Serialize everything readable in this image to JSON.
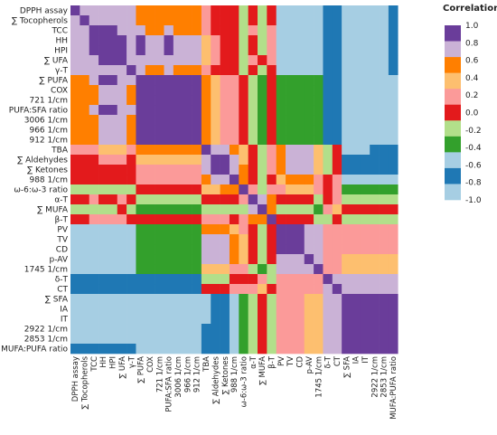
{
  "chart_data": {
    "type": "heatmap",
    "title": "",
    "variables": [
      "DPPH assay",
      "∑ Tocopherols",
      "TCC",
      "HH",
      "HPI",
      "∑ UFA",
      "γ-T",
      "∑ PUFA",
      "COX",
      "721 1/cm",
      "PUFA:SFA ratio",
      "3006 1/cm",
      "966 1/cm",
      "912 1/cm",
      "TBA",
      "∑ Aldehydes",
      "∑ Ketones",
      "988 1/cm",
      "ω-6:ω-3 ratio",
      "α-T",
      "∑ MUFA",
      "β-T",
      "PV",
      "TV",
      "CD",
      "p-AV",
      "1745 1/cm",
      "δ-T",
      "CT",
      "∑ SFA",
      "IA",
      "IT",
      "2922 1/cm",
      "2853 1/cm",
      "MUFA:PUFA ratio"
    ],
    "matrix": [
      [
        1.0,
        0.8,
        0.8,
        0.8,
        0.8,
        0.8,
        0.8,
        0.6,
        0.6,
        0.6,
        0.6,
        0.6,
        0.6,
        0.6,
        0.2,
        0.0,
        0.0,
        0.0,
        -0.2,
        0.0,
        -0.2,
        0.0,
        -0.6,
        -0.6,
        -0.6,
        -0.6,
        -0.6,
        -0.8,
        -0.8,
        -1.0,
        -1.0,
        -1.0,
        -1.0,
        -1.0,
        -0.8
      ],
      [
        0.8,
        1.0,
        0.8,
        0.8,
        0.8,
        0.8,
        0.8,
        0.6,
        0.6,
        0.6,
        0.6,
        0.6,
        0.6,
        0.6,
        0.2,
        0.0,
        0.0,
        0.0,
        -0.2,
        0.0,
        -0.2,
        0.0,
        -0.6,
        -0.6,
        -0.6,
        -0.6,
        -0.6,
        -0.8,
        -0.8,
        -1.0,
        -1.0,
        -1.0,
        -1.0,
        -1.0,
        -0.8
      ],
      [
        0.8,
        0.8,
        1.0,
        1.0,
        1.0,
        0.8,
        0.8,
        0.8,
        0.6,
        0.6,
        0.8,
        0.6,
        0.6,
        0.6,
        0.2,
        0.0,
        0.0,
        0.0,
        -0.2,
        0.2,
        -0.2,
        0.2,
        -0.6,
        -0.6,
        -0.6,
        -0.6,
        -0.6,
        -0.8,
        -0.8,
        -1.0,
        -1.0,
        -1.0,
        -1.0,
        -1.0,
        -0.8
      ],
      [
        0.8,
        0.8,
        1.0,
        1.0,
        1.0,
        1.0,
        0.8,
        1.0,
        0.8,
        0.8,
        1.0,
        0.8,
        0.8,
        0.8,
        0.4,
        0.2,
        0.0,
        0.0,
        -0.2,
        0.0,
        -0.2,
        0.2,
        -0.6,
        -0.6,
        -0.6,
        -0.6,
        -0.6,
        -0.8,
        -0.8,
        -1.0,
        -1.0,
        -1.0,
        -1.0,
        -1.0,
        -0.8
      ],
      [
        0.8,
        0.8,
        1.0,
        1.0,
        1.0,
        1.0,
        0.8,
        1.0,
        0.8,
        0.8,
        1.0,
        0.8,
        0.8,
        0.8,
        0.4,
        0.2,
        0.0,
        0.0,
        -0.2,
        0.0,
        -0.2,
        0.2,
        -0.6,
        -0.6,
        -0.6,
        -0.6,
        -0.6,
        -0.8,
        -0.8,
        -1.0,
        -1.0,
        -1.0,
        -1.0,
        -1.0,
        -0.8
      ],
      [
        0.8,
        0.8,
        0.8,
        1.0,
        1.0,
        1.0,
        0.8,
        0.8,
        0.8,
        0.8,
        0.8,
        0.8,
        0.8,
        0.8,
        0.4,
        0.2,
        0.0,
        0.0,
        -0.2,
        0.2,
        0.0,
        0.2,
        -0.6,
        -0.6,
        -0.6,
        -0.6,
        -0.6,
        -0.8,
        -0.8,
        -1.0,
        -1.0,
        -1.0,
        -1.0,
        -1.0,
        -0.8
      ],
      [
        0.8,
        0.8,
        0.8,
        0.8,
        0.8,
        0.8,
        1.0,
        0.8,
        0.6,
        0.6,
        0.8,
        0.6,
        0.6,
        0.6,
        0.2,
        0.0,
        0.0,
        0.0,
        -0.2,
        0.0,
        -0.2,
        0.0,
        -0.6,
        -0.6,
        -0.6,
        -0.6,
        -0.6,
        -0.8,
        -0.8,
        -1.0,
        -1.0,
        -1.0,
        -1.0,
        -1.0,
        -0.8
      ],
      [
        0.6,
        0.6,
        0.8,
        1.0,
        1.0,
        0.8,
        0.8,
        1.0,
        1.0,
        1.0,
        1.0,
        1.0,
        1.0,
        1.0,
        0.6,
        0.4,
        0.2,
        0.2,
        0.0,
        -0.2,
        -0.4,
        0.0,
        -0.4,
        -0.4,
        -0.4,
        -0.4,
        -0.4,
        -0.8,
        -0.8,
        -1.0,
        -1.0,
        -1.0,
        -1.0,
        -1.0,
        -1.0
      ],
      [
        0.6,
        0.6,
        0.6,
        0.8,
        0.8,
        0.8,
        0.6,
        1.0,
        1.0,
        1.0,
        1.0,
        1.0,
        1.0,
        1.0,
        0.6,
        0.4,
        0.2,
        0.2,
        0.0,
        -0.2,
        -0.4,
        0.0,
        -0.4,
        -0.4,
        -0.4,
        -0.4,
        -0.4,
        -0.8,
        -0.8,
        -1.0,
        -1.0,
        -1.0,
        -1.0,
        -1.0,
        -1.0
      ],
      [
        0.6,
        0.6,
        0.6,
        0.8,
        0.8,
        0.8,
        0.6,
        1.0,
        1.0,
        1.0,
        1.0,
        1.0,
        1.0,
        1.0,
        0.6,
        0.4,
        0.2,
        0.2,
        0.0,
        -0.2,
        -0.4,
        0.0,
        -0.4,
        -0.4,
        -0.4,
        -0.4,
        -0.4,
        -0.8,
        -0.8,
        -1.0,
        -1.0,
        -1.0,
        -1.0,
        -1.0,
        -1.0
      ],
      [
        0.6,
        0.6,
        0.8,
        1.0,
        1.0,
        0.8,
        0.8,
        1.0,
        1.0,
        1.0,
        1.0,
        1.0,
        1.0,
        1.0,
        0.6,
        0.4,
        0.2,
        0.2,
        0.0,
        -0.2,
        -0.4,
        0.0,
        -0.4,
        -0.4,
        -0.4,
        -0.4,
        -0.4,
        -0.8,
        -0.8,
        -1.0,
        -1.0,
        -1.0,
        -1.0,
        -1.0,
        -1.0
      ],
      [
        0.6,
        0.6,
        0.6,
        0.8,
        0.8,
        0.8,
        0.6,
        1.0,
        1.0,
        1.0,
        1.0,
        1.0,
        1.0,
        1.0,
        0.6,
        0.4,
        0.2,
        0.2,
        0.0,
        -0.2,
        -0.4,
        0.0,
        -0.4,
        -0.4,
        -0.4,
        -0.4,
        -0.4,
        -0.8,
        -0.8,
        -1.0,
        -1.0,
        -1.0,
        -1.0,
        -1.0,
        -1.0
      ],
      [
        0.6,
        0.6,
        0.6,
        0.8,
        0.8,
        0.8,
        0.6,
        1.0,
        1.0,
        1.0,
        1.0,
        1.0,
        1.0,
        1.0,
        0.6,
        0.4,
        0.2,
        0.2,
        0.0,
        -0.2,
        -0.4,
        0.0,
        -0.4,
        -0.4,
        -0.4,
        -0.4,
        -0.4,
        -0.8,
        -0.8,
        -1.0,
        -1.0,
        -1.0,
        -1.0,
        -1.0,
        -1.0
      ],
      [
        0.6,
        0.6,
        0.6,
        0.8,
        0.8,
        0.8,
        0.6,
        1.0,
        1.0,
        1.0,
        1.0,
        1.0,
        1.0,
        1.0,
        0.6,
        0.4,
        0.2,
        0.2,
        0.0,
        -0.2,
        -0.4,
        0.0,
        -0.4,
        -0.4,
        -0.4,
        -0.4,
        -0.4,
        -0.8,
        -0.8,
        -1.0,
        -1.0,
        -1.0,
        -1.0,
        -1.0,
        -1.0
      ],
      [
        0.2,
        0.2,
        0.2,
        0.4,
        0.4,
        0.4,
        0.2,
        0.6,
        0.6,
        0.6,
        0.6,
        0.6,
        0.6,
        0.6,
        1.0,
        0.8,
        0.8,
        0.6,
        0.4,
        0.0,
        -0.2,
        0.2,
        0.6,
        0.8,
        0.8,
        0.8,
        0.4,
        -0.2,
        0.0,
        -0.6,
        -0.6,
        -0.6,
        -0.8,
        -0.8,
        -0.8
      ],
      [
        0.0,
        0.0,
        0.0,
        0.2,
        0.2,
        0.2,
        0.0,
        0.4,
        0.4,
        0.4,
        0.4,
        0.4,
        0.4,
        0.4,
        0.8,
        1.0,
        1.0,
        0.8,
        0.4,
        0.0,
        -0.2,
        0.2,
        0.6,
        0.8,
        0.8,
        0.8,
        0.4,
        -0.2,
        0.0,
        -0.8,
        -0.8,
        -0.8,
        -0.8,
        -0.8,
        -0.8
      ],
      [
        0.0,
        0.0,
        0.0,
        0.0,
        0.0,
        0.0,
        0.0,
        0.2,
        0.2,
        0.2,
        0.2,
        0.2,
        0.2,
        0.2,
        0.8,
        1.0,
        1.0,
        0.8,
        0.6,
        0.0,
        -0.2,
        0.2,
        0.6,
        0.8,
        0.8,
        0.8,
        0.4,
        -0.2,
        0.0,
        -0.8,
        -0.8,
        -0.8,
        -0.8,
        -0.8,
        -0.8
      ],
      [
        0.0,
        0.0,
        0.0,
        0.0,
        0.0,
        0.0,
        0.0,
        0.2,
        0.2,
        0.2,
        0.2,
        0.2,
        0.2,
        0.2,
        0.6,
        0.8,
        0.8,
        1.0,
        0.6,
        0.0,
        -0.2,
        0.0,
        0.4,
        0.6,
        0.6,
        0.6,
        0.2,
        0.0,
        0.2,
        -0.6,
        -0.6,
        -0.6,
        -0.6,
        -0.6,
        -0.6
      ],
      [
        -0.2,
        -0.2,
        -0.2,
        -0.2,
        -0.2,
        -0.2,
        -0.2,
        0.0,
        0.0,
        0.0,
        0.0,
        0.0,
        0.0,
        0.0,
        0.4,
        0.4,
        0.6,
        0.6,
        1.0,
        0.2,
        -0.2,
        0.2,
        0.2,
        0.4,
        0.4,
        0.4,
        0.2,
        0.0,
        0.2,
        -0.4,
        -0.4,
        -0.4,
        -0.4,
        -0.4,
        -0.4
      ],
      [
        0.0,
        0.0,
        0.2,
        0.0,
        0.0,
        0.2,
        0.0,
        -0.2,
        -0.2,
        -0.2,
        -0.2,
        -0.2,
        -0.2,
        -0.2,
        0.0,
        0.0,
        0.0,
        0.0,
        0.2,
        1.0,
        0.8,
        0.6,
        0.0,
        0.0,
        0.0,
        0.0,
        -0.2,
        0.0,
        0.2,
        -0.2,
        -0.2,
        -0.2,
        -0.2,
        -0.2,
        -0.2
      ],
      [
        -0.2,
        -0.2,
        -0.2,
        -0.2,
        -0.2,
        0.0,
        -0.2,
        -0.4,
        -0.4,
        -0.4,
        -0.4,
        -0.4,
        -0.4,
        -0.4,
        -0.2,
        -0.2,
        -0.2,
        -0.2,
        -0.2,
        0.8,
        1.0,
        0.6,
        -0.2,
        -0.2,
        -0.2,
        -0.2,
        -0.4,
        0.2,
        0.4,
        0.0,
        0.0,
        0.0,
        0.0,
        0.0,
        0.0
      ],
      [
        0.0,
        0.0,
        0.2,
        0.2,
        0.2,
        0.2,
        0.0,
        0.0,
        0.0,
        0.0,
        0.0,
        0.0,
        0.0,
        0.0,
        0.2,
        0.2,
        0.2,
        0.0,
        0.2,
        0.6,
        0.6,
        1.0,
        0.0,
        0.0,
        0.0,
        0.0,
        -0.2,
        -0.2,
        0.0,
        -0.2,
        -0.2,
        -0.2,
        -0.2,
        -0.2,
        -0.2
      ],
      [
        -0.6,
        -0.6,
        -0.6,
        -0.6,
        -0.6,
        -0.6,
        -0.6,
        -0.4,
        -0.4,
        -0.4,
        -0.4,
        -0.4,
        -0.4,
        -0.4,
        0.6,
        0.6,
        0.6,
        0.4,
        0.2,
        0.0,
        -0.2,
        0.0,
        1.0,
        1.0,
        1.0,
        0.8,
        0.8,
        0.2,
        0.2,
        0.2,
        0.2,
        0.2,
        0.2,
        0.2,
        0.2
      ],
      [
        -0.6,
        -0.6,
        -0.6,
        -0.6,
        -0.6,
        -0.6,
        -0.6,
        -0.4,
        -0.4,
        -0.4,
        -0.4,
        -0.4,
        -0.4,
        -0.4,
        0.8,
        0.8,
        0.8,
        0.6,
        0.4,
        0.0,
        -0.2,
        0.0,
        1.0,
        1.0,
        1.0,
        0.8,
        0.8,
        0.2,
        0.2,
        0.2,
        0.2,
        0.2,
        0.2,
        0.2,
        0.2
      ],
      [
        -0.6,
        -0.6,
        -0.6,
        -0.6,
        -0.6,
        -0.6,
        -0.6,
        -0.4,
        -0.4,
        -0.4,
        -0.4,
        -0.4,
        -0.4,
        -0.4,
        0.8,
        0.8,
        0.8,
        0.6,
        0.4,
        0.0,
        -0.2,
        0.0,
        1.0,
        1.0,
        1.0,
        0.8,
        0.8,
        0.2,
        0.2,
        0.2,
        0.2,
        0.2,
        0.2,
        0.2,
        0.2
      ],
      [
        -0.6,
        -0.6,
        -0.6,
        -0.6,
        -0.6,
        -0.6,
        -0.6,
        -0.4,
        -0.4,
        -0.4,
        -0.4,
        -0.4,
        -0.4,
        -0.4,
        0.8,
        0.8,
        0.8,
        0.6,
        0.4,
        0.0,
        -0.2,
        0.0,
        0.8,
        0.8,
        0.8,
        1.0,
        0.8,
        0.2,
        0.2,
        0.4,
        0.4,
        0.4,
        0.4,
        0.4,
        0.4
      ],
      [
        -0.6,
        -0.6,
        -0.6,
        -0.6,
        -0.6,
        -0.6,
        -0.6,
        -0.4,
        -0.4,
        -0.4,
        -0.4,
        -0.4,
        -0.4,
        -0.4,
        0.4,
        0.4,
        0.4,
        0.2,
        0.2,
        -0.2,
        -0.4,
        -0.2,
        0.8,
        0.8,
        0.8,
        0.8,
        1.0,
        0.2,
        0.2,
        0.4,
        0.4,
        0.4,
        0.4,
        0.4,
        0.4
      ],
      [
        -0.8,
        -0.8,
        -0.8,
        -0.8,
        -0.8,
        -0.8,
        -0.8,
        -0.8,
        -0.8,
        -0.8,
        -0.8,
        -0.8,
        -0.8,
        -0.8,
        -0.2,
        -0.2,
        -0.2,
        0.0,
        0.0,
        0.0,
        0.2,
        -0.2,
        0.2,
        0.2,
        0.2,
        0.2,
        0.2,
        1.0,
        0.8,
        0.8,
        0.8,
        0.8,
        0.8,
        0.8,
        0.8
      ],
      [
        -0.8,
        -0.8,
        -0.8,
        -0.8,
        -0.8,
        -0.8,
        -0.8,
        -0.8,
        -0.8,
        -0.8,
        -0.8,
        -0.8,
        -0.8,
        -0.8,
        0.0,
        0.0,
        0.0,
        0.2,
        0.2,
        0.2,
        0.4,
        0.0,
        0.2,
        0.2,
        0.2,
        0.2,
        0.2,
        0.8,
        1.0,
        0.8,
        0.8,
        0.8,
        0.8,
        0.8,
        0.8
      ],
      [
        -1.0,
        -1.0,
        -1.0,
        -1.0,
        -1.0,
        -1.0,
        -1.0,
        -1.0,
        -1.0,
        -1.0,
        -1.0,
        -1.0,
        -1.0,
        -1.0,
        -0.6,
        -0.8,
        -0.8,
        -0.6,
        -0.4,
        -0.2,
        0.0,
        -0.2,
        0.2,
        0.2,
        0.2,
        0.4,
        0.4,
        0.8,
        0.8,
        1.0,
        1.0,
        1.0,
        1.0,
        1.0,
        1.0
      ],
      [
        -1.0,
        -1.0,
        -1.0,
        -1.0,
        -1.0,
        -1.0,
        -1.0,
        -1.0,
        -1.0,
        -1.0,
        -1.0,
        -1.0,
        -1.0,
        -1.0,
        -0.6,
        -0.8,
        -0.8,
        -0.6,
        -0.4,
        -0.2,
        0.0,
        -0.2,
        0.2,
        0.2,
        0.2,
        0.4,
        0.4,
        0.8,
        0.8,
        1.0,
        1.0,
        1.0,
        1.0,
        1.0,
        1.0
      ],
      [
        -1.0,
        -1.0,
        -1.0,
        -1.0,
        -1.0,
        -1.0,
        -1.0,
        -1.0,
        -1.0,
        -1.0,
        -1.0,
        -1.0,
        -1.0,
        -1.0,
        -0.6,
        -0.8,
        -0.8,
        -0.6,
        -0.4,
        -0.2,
        0.0,
        -0.2,
        0.2,
        0.2,
        0.2,
        0.4,
        0.4,
        0.8,
        0.8,
        1.0,
        1.0,
        1.0,
        1.0,
        1.0,
        1.0
      ],
      [
        -1.0,
        -1.0,
        -1.0,
        -1.0,
        -1.0,
        -1.0,
        -1.0,
        -1.0,
        -1.0,
        -1.0,
        -1.0,
        -1.0,
        -1.0,
        -1.0,
        -0.8,
        -0.8,
        -0.8,
        -0.6,
        -0.4,
        -0.2,
        0.0,
        -0.2,
        0.2,
        0.2,
        0.2,
        0.4,
        0.4,
        0.8,
        0.8,
        1.0,
        1.0,
        1.0,
        1.0,
        1.0,
        1.0
      ],
      [
        -1.0,
        -1.0,
        -1.0,
        -1.0,
        -1.0,
        -1.0,
        -1.0,
        -1.0,
        -1.0,
        -1.0,
        -1.0,
        -1.0,
        -1.0,
        -1.0,
        -0.8,
        -0.8,
        -0.8,
        -0.6,
        -0.4,
        -0.2,
        0.0,
        -0.2,
        0.2,
        0.2,
        0.2,
        0.4,
        0.4,
        0.8,
        0.8,
        1.0,
        1.0,
        1.0,
        1.0,
        1.0,
        1.0
      ],
      [
        -0.8,
        -0.8,
        -0.8,
        -0.8,
        -0.8,
        -0.8,
        -0.8,
        -1.0,
        -1.0,
        -1.0,
        -1.0,
        -1.0,
        -1.0,
        -1.0,
        -0.8,
        -0.8,
        -0.8,
        -0.6,
        -0.4,
        -0.2,
        0.0,
        -0.2,
        0.2,
        0.2,
        0.2,
        0.4,
        0.4,
        0.8,
        0.8,
        1.0,
        1.0,
        1.0,
        1.0,
        1.0,
        1.0
      ]
    ],
    "legend": {
      "title": "Correlation",
      "placement": "right",
      "ticks": [
        "1.0",
        "0.8",
        "0.6",
        "0.4",
        "0.2",
        "0.0",
        "-0.2",
        "-0.4",
        "-0.6",
        "-0.8",
        "-1.0"
      ],
      "bins": [
        {
          "min": 0.9,
          "max": 1.0,
          "color": "#6a3d9a"
        },
        {
          "min": 0.7,
          "max": 0.9,
          "color": "#cab2d6"
        },
        {
          "min": 0.5,
          "max": 0.7,
          "color": "#ff7f00"
        },
        {
          "min": 0.3,
          "max": 0.5,
          "color": "#fdbf6f"
        },
        {
          "min": 0.1,
          "max": 0.3,
          "color": "#fb9a99"
        },
        {
          "min": -0.1,
          "max": 0.1,
          "color": "#e31a1c"
        },
        {
          "min": -0.3,
          "max": -0.1,
          "color": "#b2df8a"
        },
        {
          "min": -0.5,
          "max": -0.3,
          "color": "#33a02c"
        },
        {
          "min": -0.7,
          "max": -0.5,
          "color": "#a6cee3"
        },
        {
          "min": -0.9,
          "max": -0.7,
          "color": "#1f78b4"
        },
        {
          "min": -1.0,
          "max": -0.9,
          "color": "#a6cee3"
        }
      ]
    },
    "grid": false
  }
}
